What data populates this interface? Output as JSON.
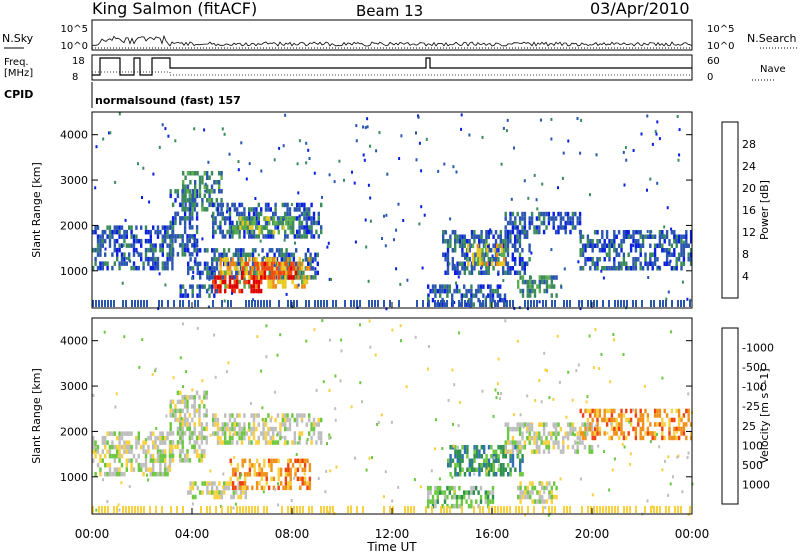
{
  "header": {
    "station": "King Salmon (fitACF)",
    "beam": "Beam 13",
    "date": "03/Apr/2010"
  },
  "top_panels": {
    "nsky_label": "N.Sky",
    "nsearch_label": "N.Search",
    "noise_ticks": [
      "10^5",
      "10^0"
    ],
    "freq_label_1": "Freq.",
    "freq_label_2": "[MHz]",
    "freq_ticks": [
      "18",
      "8"
    ],
    "nave_label": "Nave",
    "nave_ticks": [
      "60",
      "0"
    ],
    "cpid_label": "CPID",
    "cpid_text": "normalsound (fast) 157"
  },
  "colors": {
    "power_scale": [
      "#0a20e0",
      "#2a56b0",
      "#3a8a5c",
      "#5cae4c",
      "#e8c81c",
      "#f08a10",
      "#f04a14",
      "#e00000"
    ],
    "velocity_scale": [
      "#1c44c0",
      "#3070b4",
      "#2e9050",
      "#6cc840",
      "#bebebe",
      "#f8d040",
      "#f09018",
      "#f04010",
      "#e00000"
    ]
  },
  "chart_data": [
    {
      "type": "heatmap",
      "panel": "power",
      "xlabel": "",
      "ylabel": "Slant Range [km]",
      "x_ticks": [
        "00:00",
        "04:00",
        "08:00",
        "12:00",
        "16:00",
        "20:00",
        "00:00"
      ],
      "xlim_hours": [
        0,
        24
      ],
      "y_ticks": [
        1000,
        2000,
        3000,
        4000
      ],
      "ylim": [
        180,
        4500
      ],
      "colorbar_label": "Power [dB]",
      "colorbar_ticks": [
        "4",
        "8",
        "12",
        "16",
        "20",
        "24",
        "28"
      ],
      "regions": [
        {
          "t0": 0.0,
          "t1": 3.2,
          "r0": 1100,
          "r1": 2000,
          "level": 1
        },
        {
          "t0": 3.1,
          "t1": 4.2,
          "r0": 1400,
          "r1": 2800,
          "level": 1
        },
        {
          "t0": 3.6,
          "t1": 5.2,
          "r0": 2400,
          "r1": 3200,
          "level": 2
        },
        {
          "t0": 4.8,
          "t1": 9.2,
          "r0": 1800,
          "r1": 2500,
          "level": 1
        },
        {
          "t0": 5.6,
          "t1": 8.0,
          "r0": 1900,
          "r1": 2200,
          "level": 3
        },
        {
          "t0": 3.8,
          "t1": 9.0,
          "r0": 900,
          "r1": 1500,
          "level": 1
        },
        {
          "t0": 5.0,
          "t1": 8.7,
          "r0": 700,
          "r1": 1300,
          "level": 4
        },
        {
          "t0": 6.0,
          "t1": 8.3,
          "r0": 900,
          "r1": 1200,
          "level": 6
        },
        {
          "t0": 4.8,
          "t1": 6.8,
          "r0": 600,
          "r1": 900,
          "level": 7
        },
        {
          "t0": 3.5,
          "t1": 5.0,
          "r0": 500,
          "r1": 700,
          "level": 1
        },
        {
          "t0": 13.4,
          "t1": 16.5,
          "r0": 300,
          "r1": 700,
          "level": 1
        },
        {
          "t0": 14.0,
          "t1": 17.5,
          "r0": 1000,
          "r1": 1900,
          "level": 1
        },
        {
          "t0": 15.0,
          "t1": 16.5,
          "r0": 1200,
          "r1": 1600,
          "level": 4
        },
        {
          "t0": 16.5,
          "t1": 19.5,
          "r0": 1900,
          "r1": 2300,
          "level": 1
        },
        {
          "t0": 17.0,
          "t1": 18.6,
          "r0": 500,
          "r1": 900,
          "level": 2
        },
        {
          "t0": 19.5,
          "t1": 24.0,
          "r0": 1100,
          "r1": 1900,
          "level": 1
        }
      ]
    },
    {
      "type": "heatmap",
      "panel": "velocity",
      "xlabel": "Time UT",
      "ylabel": "Slant Range [km]",
      "x_ticks": [
        "00:00",
        "04:00",
        "08:00",
        "12:00",
        "16:00",
        "20:00",
        "00:00"
      ],
      "xlim_hours": [
        0,
        24
      ],
      "y_ticks": [
        1000,
        2000,
        3000,
        4000
      ],
      "ylim": [
        180,
        4500
      ],
      "colorbar_label": "Velocity [m s^-1]",
      "colorbar_ticks": [
        "1000",
        "500",
        "100",
        "25",
        "-25",
        "-100",
        "-500",
        "-1000"
      ],
      "regions": [
        {
          "t0": 0.0,
          "t1": 3.2,
          "r0": 1100,
          "r1": 2000,
          "level": 4
        },
        {
          "t0": 3.1,
          "t1": 4.6,
          "r0": 1400,
          "r1": 2900,
          "level": 4
        },
        {
          "t0": 4.8,
          "t1": 9.2,
          "r0": 1800,
          "r1": 2400,
          "level": 4
        },
        {
          "t0": 3.8,
          "t1": 6.2,
          "r0": 600,
          "r1": 900,
          "level": 4
        },
        {
          "t0": 5.5,
          "t1": 8.7,
          "r0": 800,
          "r1": 1400,
          "level": 6
        },
        {
          "t0": 13.4,
          "t1": 16.0,
          "r0": 400,
          "r1": 800,
          "level": 3
        },
        {
          "t0": 14.2,
          "t1": 17.2,
          "r0": 1100,
          "r1": 1700,
          "level": 2
        },
        {
          "t0": 16.5,
          "t1": 20.0,
          "r0": 1600,
          "r1": 2200,
          "level": 4
        },
        {
          "t0": 19.5,
          "t1": 24.0,
          "r0": 1900,
          "r1": 2500,
          "level": 6
        },
        {
          "t0": 17.0,
          "t1": 18.6,
          "r0": 500,
          "r1": 900,
          "level": 4
        }
      ]
    }
  ]
}
